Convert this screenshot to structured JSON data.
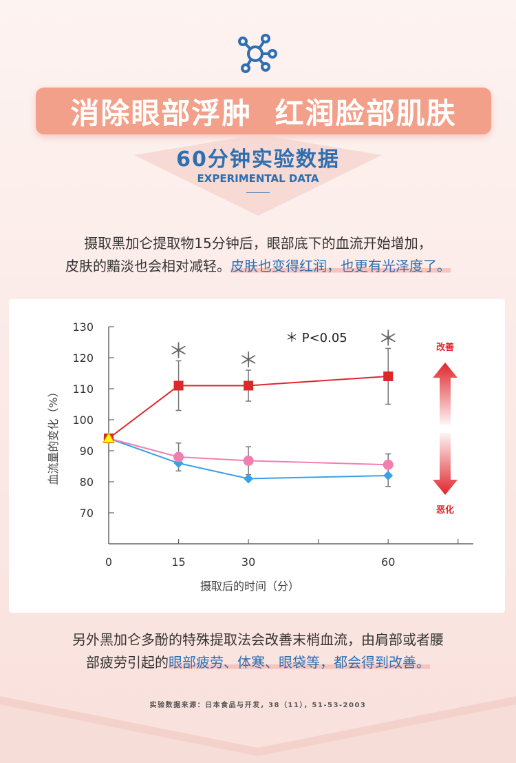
{
  "header": {
    "title": "消除眼部浮肿  红润脸部肌肤",
    "subtitle_cn": "60分钟实验数据",
    "subtitle_en": "EXPERIMENTAL DATA"
  },
  "intro": {
    "line1": "摄取黑加仑提取物15分钟后，眼部底下的血流开始增加，",
    "line2_plain": "皮肤的黯淡也会相对减轻。",
    "line2_highlight": "皮肤也变得红润，也更有光泽度了。"
  },
  "closing": {
    "line1": "另外黑加仑多酚的特殊提取法会改善末梢血流，由肩部或者腰",
    "line2_plain": "部疲劳引起的",
    "line2_highlight": "眼部疲劳、体寒、眼袋等，都会得到改善。"
  },
  "source_note": "实验数据来源：日本食品与开发，38（11），51-53-2003",
  "colors": {
    "accent": "#f3a08a",
    "blue_text": "#2d6fb0",
    "improve_red": "#e0252b"
  },
  "chart_data": {
    "type": "line",
    "title": "",
    "xlabel": "摄取后的时间（分）",
    "ylabel": "血流量的变化（%）",
    "x": [
      0,
      15,
      30,
      60
    ],
    "x_ticks": [
      "0",
      "15",
      "30",
      "60"
    ],
    "y_ticks": [
      "130",
      "120",
      "110",
      "100",
      "90",
      "80",
      "70"
    ],
    "ylim": [
      60,
      130
    ],
    "significance_label": "＊ P<0.05",
    "significance_marker": "＊",
    "significant_x": [
      15,
      30,
      60
    ],
    "improve_label": "改善",
    "worsen_label": "恶化",
    "series": [
      {
        "color": "#e0252b",
        "marker": "square",
        "values": [
          94,
          111,
          111,
          114
        ],
        "error": [
          0,
          8,
          5,
          9
        ]
      },
      {
        "color": "#f27fb0",
        "marker": "circle",
        "values": [
          94,
          88,
          86.8,
          85.5
        ],
        "error": [
          0,
          4.5,
          4.5,
          3.5
        ]
      },
      {
        "color": "#3aa0e8",
        "marker": "diamond",
        "values": [
          94,
          86,
          81,
          82
        ],
        "error": [
          0,
          0,
          0,
          3.5
        ]
      }
    ],
    "baseline_marker": {
      "color": "#ffff00",
      "stroke": "#d4a000",
      "marker": "triangle",
      "x": 0,
      "y": 94
    },
    "grid": false,
    "legend": "none"
  }
}
